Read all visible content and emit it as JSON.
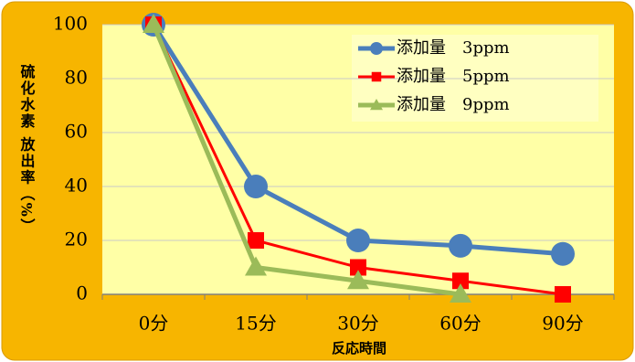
{
  "chart_data": {
    "type": "line",
    "categories": [
      "0分",
      "15分",
      "30分",
      "60分",
      "90分"
    ],
    "series": [
      {
        "name": "添加量　3ppm",
        "color": "#4a7ebb",
        "marker": "circle",
        "values": [
          100,
          40,
          20,
          18,
          15
        ]
      },
      {
        "name": "添加量　5ppm",
        "color": "#ff0000",
        "marker": "square",
        "values": [
          100,
          20,
          10,
          5,
          0
        ]
      },
      {
        "name": "添加量　9ppm",
        "color": "#9bbb59",
        "marker": "triangle",
        "values": [
          100,
          10,
          5,
          0,
          null
        ]
      }
    ],
    "x_label": "反応時間",
    "y_label": "硫化水素 放出率（%）",
    "ylim": [
      0,
      100
    ],
    "yticks": [
      0,
      20,
      40,
      60,
      80,
      100
    ],
    "grid": true,
    "legend": "upper right"
  }
}
